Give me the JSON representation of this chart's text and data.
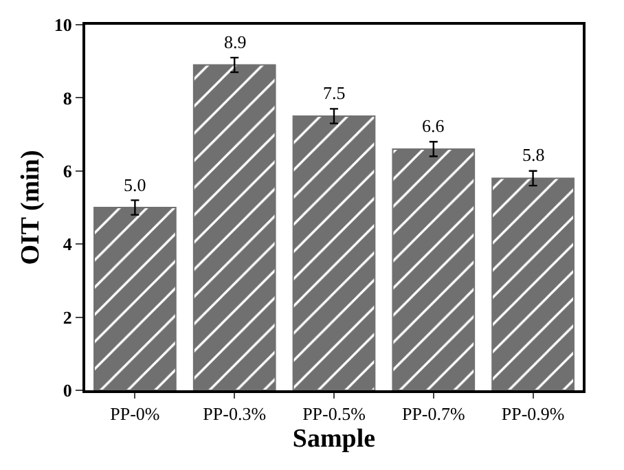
{
  "chart_data": {
    "type": "bar",
    "xlabel": "Sample",
    "ylabel": "OIT (min)",
    "categories": [
      "PP-0%",
      "PP-0.3%",
      "PP-0.5%",
      "PP-0.7%",
      "PP-0.9%"
    ],
    "values": [
      5.0,
      8.9,
      7.5,
      6.6,
      5.8
    ],
    "errors": [
      0.2,
      0.2,
      0.2,
      0.2,
      0.2
    ],
    "color": "#707070",
    "value_labels": [
      "5.0",
      "8.9",
      "7.5",
      "6.6",
      "5.8"
    ],
    "ylim": [
      0,
      10
    ],
    "yticks": [
      0,
      2,
      4,
      6,
      8,
      10
    ],
    "grid": false
  }
}
